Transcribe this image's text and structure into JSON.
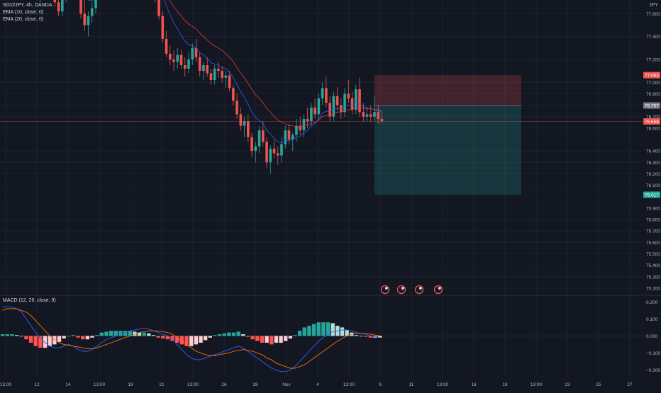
{
  "legend": {
    "symbol": "SGD/JPY, 4h, OANDA",
    "ema10": "EMA (10, close, 0)",
    "ema20": "EMA (20, close, 0)",
    "macd": "MACD (12, 26, close, 9)"
  },
  "currency": "JPY",
  "colors": {
    "background": "#131722",
    "up": "#26a69a",
    "down": "#ef5350",
    "ema10": "#2962ff",
    "ema20": "#e53935",
    "axis_text": "#b2b5be",
    "grid": "#1e222d"
  },
  "chart_data": {
    "type": "candlestick",
    "price_axis": {
      "ticks": [
        "77.600",
        "77.400",
        "77.200",
        "77.000",
        "76.900",
        "76.800",
        "76.700",
        "76.600",
        "76.400",
        "76.300",
        "76.200",
        "76.100",
        "75.900",
        "75.800",
        "75.700",
        "75.600",
        "75.500",
        "75.400",
        "75.300",
        "75.200"
      ],
      "ylim": [
        75.15,
        77.72
      ]
    },
    "time_axis": {
      "ticks": [
        "13:00",
        "12",
        "14",
        "13:00",
        "19",
        "21",
        "13:00",
        "26",
        "28",
        "Nov",
        "4",
        "13:00",
        "9",
        "11",
        "13:00",
        "16",
        "18",
        "13:00",
        "23",
        "25",
        "27"
      ]
    },
    "price_labels": [
      {
        "value": 77.063,
        "text": "77.063",
        "role": "stop-loss",
        "color": "#ef5350"
      },
      {
        "value": 76.797,
        "text": "76.797",
        "role": "entry",
        "color": "#787b86"
      },
      {
        "value": 76.658,
        "text": "76.658",
        "role": "last-price",
        "color": "#ef5350"
      },
      {
        "value": 76.017,
        "text": "76.017",
        "role": "take-profit",
        "color": "#26a69a"
      }
    ],
    "position": {
      "type": "short",
      "entry": 76.797,
      "stop": 77.063,
      "target": 76.017
    },
    "ohlc": [
      [
        77.95,
        77.98,
        77.88,
        77.95
      ],
      [
        77.95,
        78.02,
        77.9,
        77.98
      ],
      [
        77.98,
        78.0,
        77.85,
        77.9
      ],
      [
        77.9,
        77.96,
        77.8,
        77.82
      ],
      [
        77.82,
        77.93,
        77.78,
        77.9
      ],
      [
        77.9,
        78.0,
        77.86,
        77.96
      ],
      [
        77.96,
        78.05,
        77.9,
        78.0
      ],
      [
        78.0,
        78.02,
        77.88,
        77.92
      ],
      [
        77.92,
        77.98,
        77.8,
        77.85
      ],
      [
        77.85,
        77.9,
        77.72,
        77.75
      ],
      [
        77.75,
        77.86,
        77.7,
        77.82
      ],
      [
        77.82,
        77.95,
        77.78,
        77.9
      ],
      [
        77.9,
        77.98,
        77.82,
        77.88
      ],
      [
        77.88,
        77.92,
        77.75,
        77.8
      ],
      [
        77.8,
        77.84,
        77.66,
        77.7
      ],
      [
        77.7,
        77.78,
        77.58,
        77.62
      ],
      [
        77.62,
        77.8,
        77.58,
        77.75
      ],
      [
        77.75,
        77.88,
        77.7,
        77.84
      ],
      [
        77.84,
        77.95,
        77.78,
        77.9
      ],
      [
        77.9,
        78.0,
        77.86,
        77.96
      ],
      [
        77.96,
        78.0,
        77.8,
        77.84
      ],
      [
        77.84,
        77.88,
        77.56,
        77.6
      ],
      [
        77.6,
        77.74,
        77.45,
        77.5
      ],
      [
        77.5,
        77.62,
        77.4,
        77.58
      ],
      [
        77.58,
        77.7,
        77.52,
        77.65
      ],
      [
        77.65,
        77.9,
        77.6,
        77.85
      ],
      [
        77.85,
        78.0,
        77.78,
        77.94
      ],
      [
        77.94,
        78.02,
        77.85,
        77.9
      ],
      [
        77.9,
        77.96,
        77.8,
        77.86
      ],
      [
        77.86,
        77.92,
        77.78,
        77.88
      ],
      [
        77.88,
        78.0,
        77.82,
        77.95
      ],
      [
        77.95,
        78.05,
        77.88,
        77.98
      ],
      [
        77.98,
        78.03,
        77.9,
        77.96
      ],
      [
        77.96,
        78.02,
        77.88,
        77.94
      ],
      [
        77.94,
        78.1,
        77.9,
        78.05
      ],
      [
        78.05,
        78.12,
        77.95,
        78.0
      ],
      [
        78.0,
        78.08,
        77.92,
        78.02
      ],
      [
        78.02,
        78.05,
        77.9,
        77.95
      ],
      [
        77.95,
        78.0,
        77.88,
        77.97
      ],
      [
        77.97,
        78.04,
        77.9,
        78.0
      ],
      [
        78.0,
        78.02,
        77.85,
        77.88
      ],
      [
        77.88,
        77.92,
        77.7,
        77.75
      ],
      [
        77.75,
        77.8,
        77.55,
        77.58
      ],
      [
        77.58,
        77.62,
        77.35,
        77.38
      ],
      [
        77.38,
        77.45,
        77.22,
        77.25
      ],
      [
        77.25,
        77.32,
        77.15,
        77.2
      ],
      [
        77.2,
        77.28,
        77.1,
        77.18
      ],
      [
        77.18,
        77.3,
        77.12,
        77.24
      ],
      [
        77.24,
        77.28,
        77.12,
        77.15
      ],
      [
        77.15,
        77.22,
        77.05,
        77.12
      ],
      [
        77.12,
        77.26,
        77.08,
        77.2
      ],
      [
        77.2,
        77.34,
        77.15,
        77.3
      ],
      [
        77.3,
        77.38,
        77.18,
        77.22
      ],
      [
        77.22,
        77.26,
        77.05,
        77.1
      ],
      [
        77.1,
        77.18,
        77.02,
        77.15
      ],
      [
        77.15,
        77.22,
        77.05,
        77.08
      ],
      [
        77.08,
        77.12,
        76.98,
        77.02
      ],
      [
        77.02,
        77.15,
        76.98,
        77.12
      ],
      [
        77.12,
        77.18,
        77.04,
        77.1
      ],
      [
        77.1,
        77.14,
        77.0,
        77.04
      ],
      [
        77.04,
        77.1,
        76.95,
        77.06
      ],
      [
        77.06,
        77.1,
        76.92,
        76.95
      ],
      [
        76.95,
        76.98,
        76.8,
        76.84
      ],
      [
        76.84,
        76.9,
        76.68,
        76.72
      ],
      [
        76.72,
        76.78,
        76.58,
        76.62
      ],
      [
        76.62,
        76.7,
        76.52,
        76.66
      ],
      [
        76.66,
        76.72,
        76.48,
        76.52
      ],
      [
        76.52,
        76.56,
        76.35,
        76.4
      ],
      [
        76.4,
        76.48,
        76.3,
        76.44
      ],
      [
        76.44,
        76.62,
        76.38,
        76.58
      ],
      [
        76.58,
        76.66,
        76.44,
        76.48
      ],
      [
        76.48,
        76.52,
        76.25,
        76.3
      ],
      [
        76.3,
        76.45,
        76.2,
        76.42
      ],
      [
        76.42,
        76.5,
        76.34,
        76.38
      ],
      [
        76.38,
        76.44,
        76.28,
        76.36
      ],
      [
        76.36,
        76.52,
        76.3,
        76.46
      ],
      [
        76.46,
        76.62,
        76.42,
        76.58
      ],
      [
        76.58,
        76.64,
        76.46,
        76.5
      ],
      [
        76.5,
        76.56,
        76.4,
        76.54
      ],
      [
        76.54,
        76.68,
        76.48,
        76.62
      ],
      [
        76.62,
        76.7,
        76.54,
        76.58
      ],
      [
        76.58,
        76.72,
        76.52,
        76.68
      ],
      [
        76.68,
        76.78,
        76.6,
        76.66
      ],
      [
        76.66,
        76.82,
        76.62,
        76.78
      ],
      [
        76.78,
        76.86,
        76.68,
        76.72
      ],
      [
        76.72,
        76.9,
        76.68,
        76.86
      ],
      [
        76.86,
        77.0,
        76.8,
        76.95
      ],
      [
        76.95,
        77.05,
        76.78,
        76.82
      ],
      [
        76.82,
        76.88,
        76.66,
        76.7
      ],
      [
        76.7,
        76.92,
        76.66,
        76.88
      ],
      [
        76.88,
        76.96,
        76.75,
        76.8
      ],
      [
        76.8,
        76.86,
        76.68,
        76.74
      ],
      [
        76.74,
        76.95,
        76.7,
        76.9
      ],
      [
        76.9,
        77.02,
        76.82,
        76.86
      ],
      [
        76.86,
        76.92,
        76.72,
        76.76
      ],
      [
        76.76,
        76.98,
        76.72,
        76.94
      ],
      [
        76.94,
        77.04,
        76.7,
        76.74
      ],
      [
        76.74,
        76.82,
        76.66,
        76.7
      ],
      [
        76.7,
        76.78,
        76.66,
        76.72
      ],
      [
        76.72,
        76.8,
        76.65,
        76.7
      ],
      [
        76.7,
        76.88,
        76.66,
        76.74
      ],
      [
        76.74,
        76.8,
        76.64,
        76.68
      ],
      [
        76.68,
        76.74,
        76.64,
        76.66
      ]
    ],
    "ema10": [
      77.86,
      77.87,
      77.87,
      77.86,
      77.86,
      77.87,
      77.89,
      77.89,
      77.88,
      77.86,
      77.85,
      77.86,
      77.86,
      77.86,
      77.83,
      77.8,
      77.79,
      77.8,
      77.82,
      77.84,
      77.84,
      77.8,
      77.75,
      77.72,
      77.71,
      77.74,
      77.77,
      77.79,
      77.8,
      77.81,
      77.84,
      77.86,
      77.88,
      77.89,
      77.92,
      77.93,
      77.94,
      77.94,
      77.94,
      77.95,
      77.93,
      77.9,
      77.84,
      77.76,
      77.67,
      77.59,
      77.52,
      77.47,
      77.41,
      77.36,
      77.33,
      77.32,
      77.3,
      77.26,
      77.24,
      77.21,
      77.17,
      77.16,
      77.15,
      77.13,
      77.12,
      77.09,
      77.04,
      76.98,
      76.92,
      76.87,
      76.81,
      76.74,
      76.69,
      76.67,
      76.64,
      76.58,
      76.55,
      76.51,
      76.48,
      76.47,
      76.49,
      76.49,
      76.5,
      76.52,
      76.53,
      76.56,
      76.58,
      76.62,
      76.64,
      76.68,
      76.73,
      76.75,
      76.74,
      76.77,
      76.77,
      76.77,
      76.79,
      76.8,
      76.8,
      76.82,
      76.81,
      76.79,
      76.78,
      76.77,
      76.76,
      76.75,
      76.74
    ],
    "ema20": [
      77.8,
      77.81,
      77.82,
      77.82,
      77.83,
      77.84,
      77.85,
      77.86,
      77.86,
      77.85,
      77.85,
      77.85,
      77.86,
      77.85,
      77.84,
      77.82,
      77.81,
      77.81,
      77.82,
      77.83,
      77.83,
      77.81,
      77.78,
      77.76,
      77.75,
      77.76,
      77.77,
      77.79,
      77.79,
      77.8,
      77.82,
      77.83,
      77.84,
      77.85,
      77.87,
      77.88,
      77.89,
      77.9,
      77.91,
      77.92,
      77.91,
      77.9,
      77.87,
      77.82,
      77.76,
      77.71,
      77.66,
      77.62,
      77.58,
      77.54,
      77.51,
      77.49,
      77.47,
      77.43,
      77.4,
      77.37,
      77.34,
      77.32,
      77.3,
      77.28,
      77.25,
      77.22,
      77.18,
      77.13,
      77.08,
      77.04,
      76.99,
      76.94,
      76.89,
      76.86,
      76.82,
      76.77,
      76.74,
      76.7,
      76.67,
      76.65,
      76.64,
      76.62,
      76.62,
      76.61,
      76.61,
      76.62,
      76.63,
      76.64,
      76.65,
      76.67,
      76.7,
      76.71,
      76.71,
      76.73,
      76.74,
      76.74,
      76.75,
      76.76,
      76.76,
      76.78,
      76.78,
      76.77,
      76.77,
      76.77,
      76.76,
      76.76,
      76.75
    ],
    "macd": {
      "ticks": [
        "0.200",
        "0.100",
        "0.000",
        "−0.100",
        "−0.200"
      ],
      "ylim": [
        -0.24,
        0.235
      ],
      "macd_line": [
        0.17,
        0.17,
        0.17,
        0.16,
        0.14,
        0.1,
        0.06,
        0.02,
        -0.01,
        -0.04,
        -0.06,
        -0.07,
        -0.07,
        -0.06,
        -0.05,
        -0.06,
        -0.08,
        -0.09,
        -0.09,
        -0.08,
        -0.06,
        -0.04,
        -0.02,
        -0.01,
        0.0,
        0.01,
        0.02,
        0.03,
        0.035,
        0.04,
        0.045,
        0.04,
        0.03,
        0.02,
        0.01,
        0.0,
        -0.02,
        -0.05,
        -0.08,
        -0.11,
        -0.13,
        -0.14,
        -0.14,
        -0.13,
        -0.12,
        -0.11,
        -0.1,
        -0.09,
        -0.08,
        -0.07,
        -0.06,
        -0.07,
        -0.09,
        -0.11,
        -0.13,
        -0.15,
        -0.17,
        -0.19,
        -0.2,
        -0.21,
        -0.21,
        -0.2,
        -0.18,
        -0.15,
        -0.12,
        -0.09,
        -0.06,
        -0.03,
        -0.01,
        0.01,
        0.025,
        0.03,
        0.035,
        0.035,
        0.03,
        0.02,
        0.015,
        0.01,
        0.0,
        -0.005,
        -0.01
      ],
      "signal_line": [
        0.15,
        0.16,
        0.16,
        0.16,
        0.15,
        0.14,
        0.12,
        0.09,
        0.06,
        0.03,
        0.0,
        -0.02,
        -0.04,
        -0.05,
        -0.055,
        -0.06,
        -0.065,
        -0.07,
        -0.075,
        -0.075,
        -0.07,
        -0.06,
        -0.05,
        -0.04,
        -0.03,
        -0.02,
        -0.01,
        0.0,
        0.01,
        0.02,
        0.025,
        0.03,
        0.03,
        0.028,
        0.025,
        0.02,
        0.01,
        -0.01,
        -0.03,
        -0.05,
        -0.07,
        -0.09,
        -0.1,
        -0.11,
        -0.115,
        -0.115,
        -0.11,
        -0.105,
        -0.1,
        -0.09,
        -0.085,
        -0.08,
        -0.085,
        -0.09,
        -0.1,
        -0.11,
        -0.13,
        -0.14,
        -0.16,
        -0.17,
        -0.18,
        -0.19,
        -0.19,
        -0.18,
        -0.17,
        -0.15,
        -0.13,
        -0.11,
        -0.09,
        -0.07,
        -0.05,
        -0.03,
        -0.015,
        0.0,
        0.01,
        0.015,
        0.015,
        0.015,
        0.01,
        0.005,
        0.0
      ],
      "histogram": [
        0.01,
        0.01,
        0.01,
        0.005,
        0.0,
        -0.02,
        -0.04,
        -0.06,
        -0.07,
        -0.07,
        -0.06,
        -0.05,
        -0.035,
        -0.015,
        0.0,
        0.005,
        -0.01,
        -0.02,
        -0.02,
        -0.01,
        0.005,
        0.02,
        0.025,
        0.03,
        0.03,
        0.03,
        0.03,
        0.03,
        0.025,
        0.02,
        0.02,
        0.015,
        0.005,
        -0.01,
        -0.015,
        -0.02,
        -0.03,
        -0.04,
        -0.05,
        -0.06,
        -0.06,
        -0.05,
        -0.04,
        -0.025,
        -0.01,
        0.005,
        0.01,
        0.015,
        0.02,
        0.02,
        0.025,
        0.01,
        -0.005,
        -0.02,
        -0.03,
        -0.04,
        -0.04,
        -0.05,
        -0.04,
        -0.04,
        -0.03,
        -0.015,
        0.005,
        0.03,
        0.05,
        0.06,
        0.07,
        0.08,
        0.08,
        0.08,
        0.075,
        0.06,
        0.05,
        0.035,
        0.02,
        0.005,
        0.0,
        -0.005,
        -0.01,
        -0.01,
        -0.01
      ]
    }
  },
  "event_markers": [
    {
      "icon": "earnings-flag-icon"
    },
    {
      "icon": "economic-event-icon"
    },
    {
      "icon": "economic-event-icon"
    },
    {
      "icon": "economic-event-icon"
    }
  ]
}
